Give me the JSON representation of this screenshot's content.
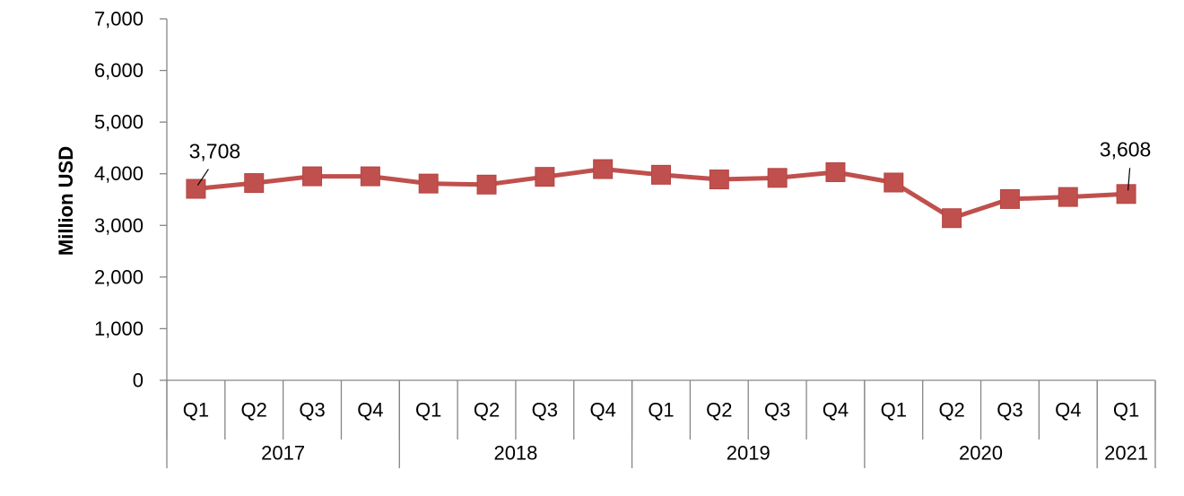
{
  "chart_data": {
    "type": "line",
    "ylabel": "Million USD",
    "xlabel": "",
    "ylim": [
      0,
      7000
    ],
    "yticks": [
      0,
      1000,
      2000,
      3000,
      4000,
      5000,
      6000,
      7000
    ],
    "ytick_labels": [
      "0",
      "1,000",
      "2,000",
      "3,000",
      "4,000",
      "5,000",
      "6,000",
      "7,000"
    ],
    "grid": false,
    "legend": "none",
    "categories": [
      "Q1",
      "Q2",
      "Q3",
      "Q4",
      "Q1",
      "Q2",
      "Q3",
      "Q4",
      "Q1",
      "Q2",
      "Q3",
      "Q4",
      "Q1",
      "Q2",
      "Q3",
      "Q4",
      "Q1"
    ],
    "groups": [
      {
        "label": "2017",
        "count": 4
      },
      {
        "label": "2018",
        "count": 4
      },
      {
        "label": "2019",
        "count": 4
      },
      {
        "label": "2020",
        "count": 4
      },
      {
        "label": "2021",
        "count": 1
      }
    ],
    "series": [
      {
        "color": "#C0504D",
        "values": [
          3708,
          3820,
          3950,
          3950,
          3810,
          3790,
          3940,
          4090,
          3980,
          3890,
          3920,
          4030,
          3830,
          3140,
          3510,
          3550,
          3608
        ]
      }
    ],
    "annotations": [
      {
        "index": 0,
        "text": "3,708"
      },
      {
        "index": 16,
        "text": "3,608"
      }
    ]
  }
}
